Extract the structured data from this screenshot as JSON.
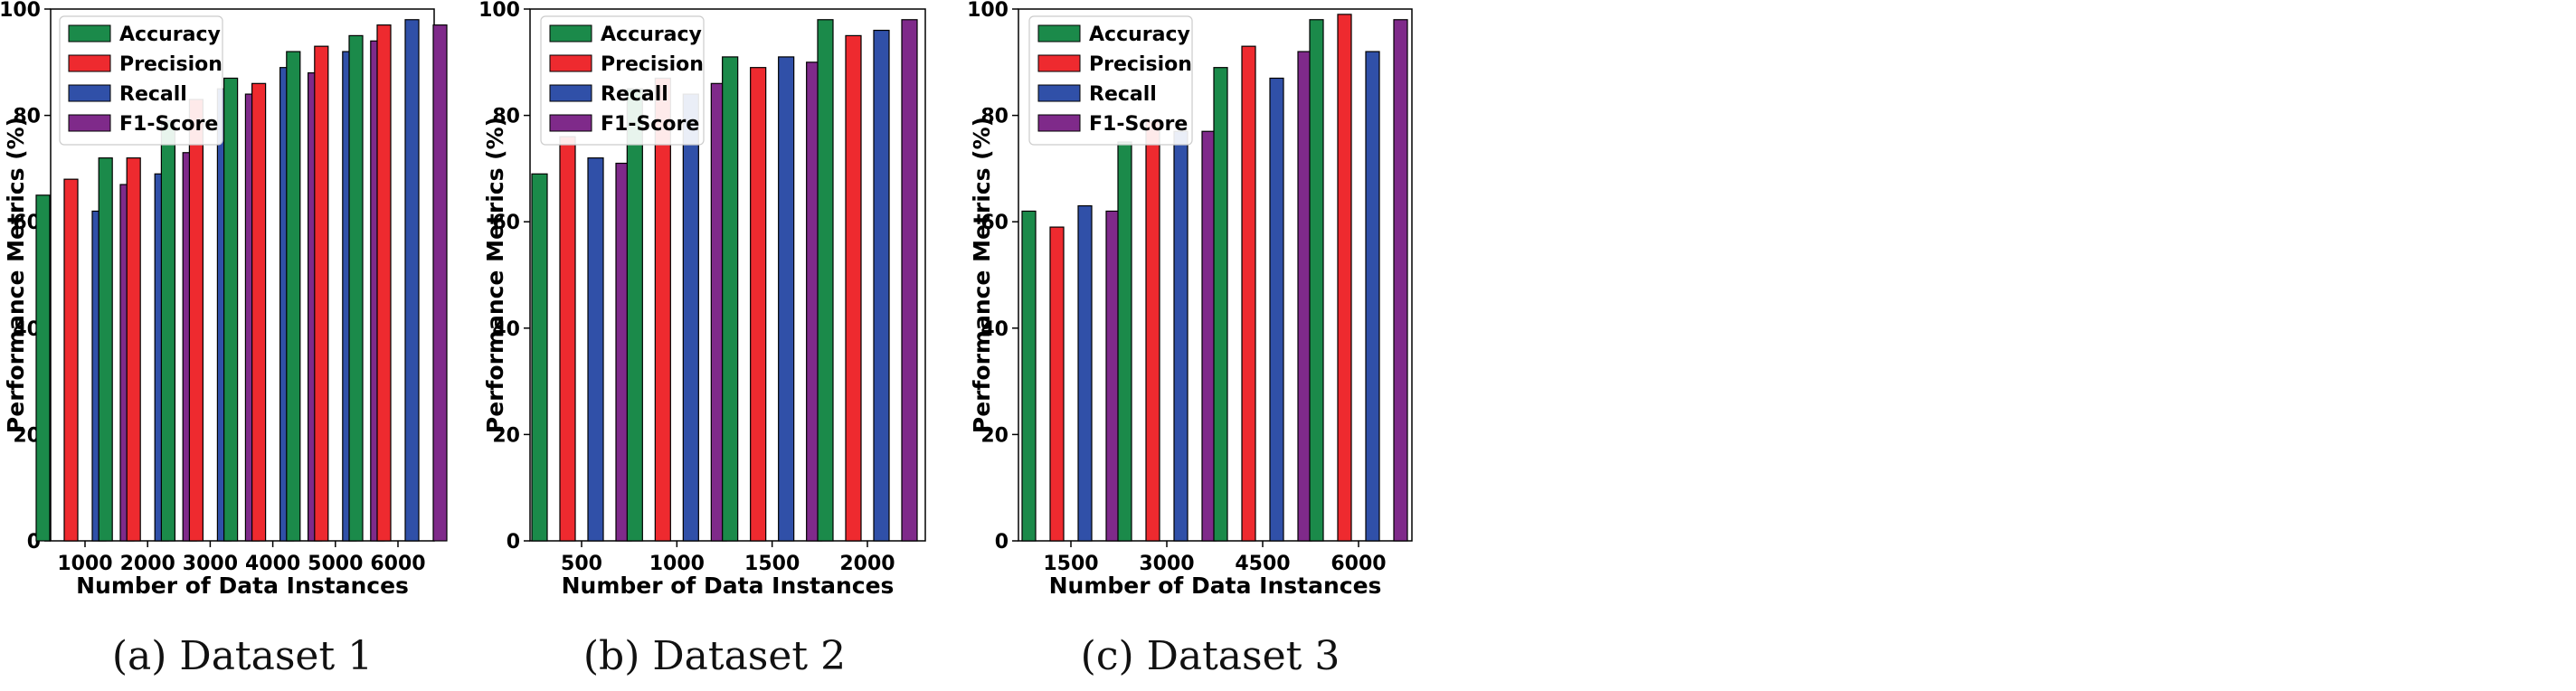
{
  "chart_data": [
    {
      "type": "bar",
      "caption": "(a) Dataset 1",
      "categories": [
        "1000",
        "2000",
        "3000",
        "4000",
        "5000",
        "6000"
      ],
      "series": [
        {
          "name": "Accuracy",
          "values": [
            65,
            72,
            79,
            87,
            92,
            95
          ]
        },
        {
          "name": "Precision",
          "values": [
            68,
            72,
            83,
            86,
            93,
            97
          ]
        },
        {
          "name": "Recall",
          "values": [
            62,
            69,
            85,
            89,
            92,
            98
          ]
        },
        {
          "name": "F1-Score",
          "values": [
            67,
            73,
            84,
            88,
            94,
            97
          ]
        }
      ],
      "xlabel": "Number of Data Instances",
      "ylabel": "Performance Metrics (%)",
      "ylim": [
        0,
        100
      ],
      "yticks": [
        "0",
        "20",
        "40",
        "60",
        "80",
        "100"
      ],
      "legend": "top-left"
    },
    {
      "type": "bar",
      "caption": "(b) Dataset 2",
      "categories": [
        "500",
        "1000",
        "1500",
        "2000"
      ],
      "series": [
        {
          "name": "Accuracy",
          "values": [
            69,
            85,
            91,
            98
          ]
        },
        {
          "name": "Precision",
          "values": [
            76,
            87,
            89,
            95
          ]
        },
        {
          "name": "Recall",
          "values": [
            72,
            84,
            91,
            96
          ]
        },
        {
          "name": "F1-Score",
          "values": [
            71,
            86,
            90,
            98
          ]
        }
      ],
      "xlabel": "Number of Data Instances",
      "ylabel": "Performance Metrics (%)",
      "ylim": [
        0,
        100
      ],
      "yticks": [
        "0",
        "20",
        "40",
        "60",
        "80",
        "100"
      ],
      "legend": "top-left"
    },
    {
      "type": "bar",
      "caption": "(c) Dataset 3",
      "categories": [
        "1500",
        "3000",
        "4500",
        "6000"
      ],
      "series": [
        {
          "name": "Accuracy",
          "values": [
            62,
            75,
            89,
            98
          ]
        },
        {
          "name": "Precision",
          "values": [
            59,
            79,
            93,
            99
          ]
        },
        {
          "name": "Recall",
          "values": [
            63,
            77,
            87,
            92
          ]
        },
        {
          "name": "F1-Score",
          "values": [
            62,
            77,
            92,
            98
          ]
        }
      ],
      "xlabel": "Number of Data Instances",
      "ylabel": "Performance Metrics (%)",
      "ylim": [
        0,
        100
      ],
      "yticks": [
        "0",
        "20",
        "40",
        "60",
        "80",
        "100"
      ],
      "legend": "top-left"
    }
  ],
  "colors": {
    "Accuracy": "#1b8a4a",
    "Precision": "#ee2a2f",
    "Recall": "#3050a8",
    "F1-Score": "#7f2a8a"
  }
}
